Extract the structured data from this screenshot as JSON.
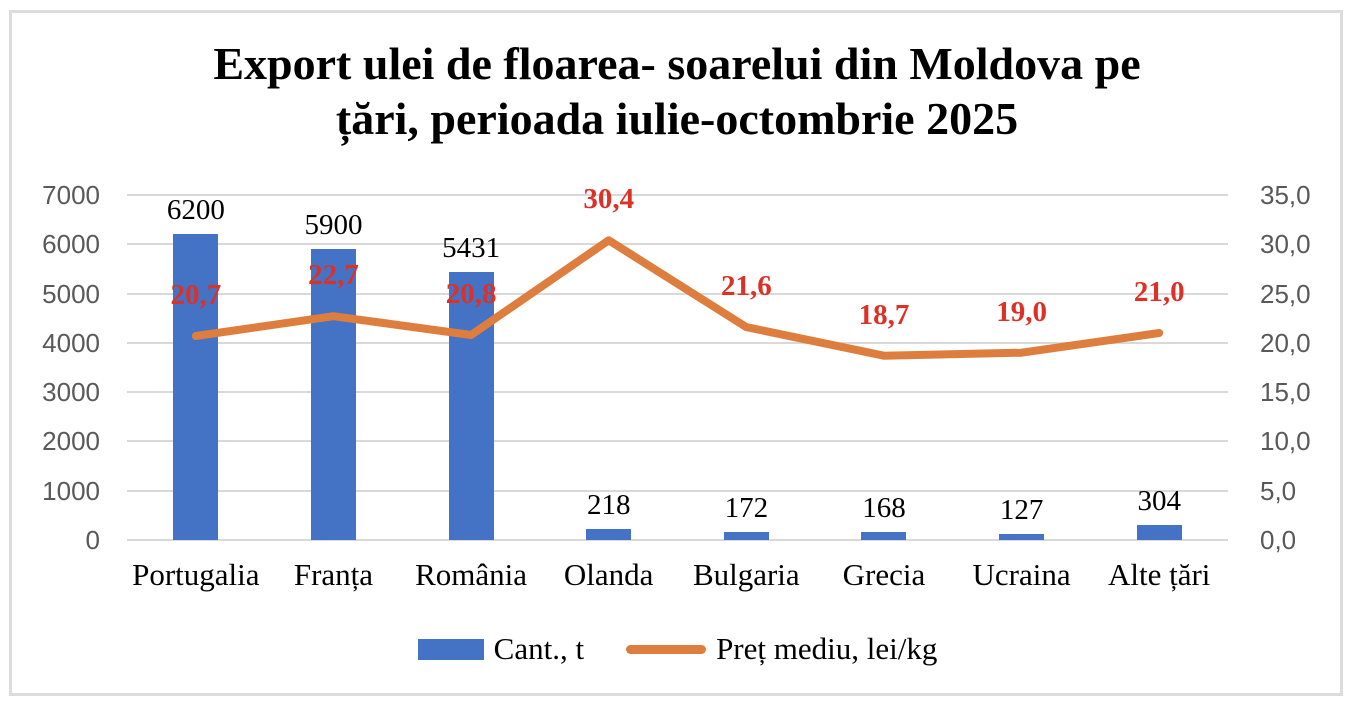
{
  "title": {
    "lines": [
      "Export ulei de floarea- soarelui din Moldova pe",
      "țări, perioada iulie-octombrie 2025"
    ]
  },
  "chart_data": {
    "type": "combo",
    "title": "Export ulei de floarea- soarelui din Moldova pe țări, perioada iulie-octombrie 2025",
    "categories": [
      "Portugalia",
      "Franța",
      "România",
      "Olanda",
      "Bulgaria",
      "Grecia",
      "Ucraina",
      "Alte țări"
    ],
    "series": [
      {
        "name": "Cant., t",
        "type": "bar",
        "color": "#4472C4",
        "axis": "left",
        "values": [
          6200,
          5900,
          5431,
          218,
          172,
          168,
          127,
          304
        ],
        "labels": [
          "6200",
          "5900",
          "5431",
          "218",
          "172",
          "168",
          "127",
          "304"
        ],
        "label_color": "#000000"
      },
      {
        "name": "Preț mediu, lei/kg",
        "type": "line",
        "color": "#DD7E3E",
        "axis": "right",
        "values": [
          20.7,
          22.7,
          20.8,
          30.4,
          21.6,
          18.7,
          19.0,
          21.0
        ],
        "labels": [
          "20,7",
          "22,7",
          "20,8",
          "30,4",
          "21,6",
          "18,7",
          "19,0",
          "21,0"
        ],
        "label_color": "#DC3126"
      }
    ],
    "axes": {
      "left": {
        "min": 0,
        "max": 7000,
        "step": 1000,
        "ticks": [
          "0",
          "1000",
          "2000",
          "3000",
          "4000",
          "5000",
          "6000",
          "7000"
        ]
      },
      "right": {
        "min": 0,
        "max": 35,
        "step": 5,
        "ticks": [
          "0,0",
          "5,0",
          "10,0",
          "15,0",
          "20,0",
          "25,0",
          "30,0",
          "35,0"
        ]
      }
    },
    "grid": true,
    "legend_position": "bottom",
    "grid_color": "#D9D9D9",
    "tick_color": "#595959"
  }
}
